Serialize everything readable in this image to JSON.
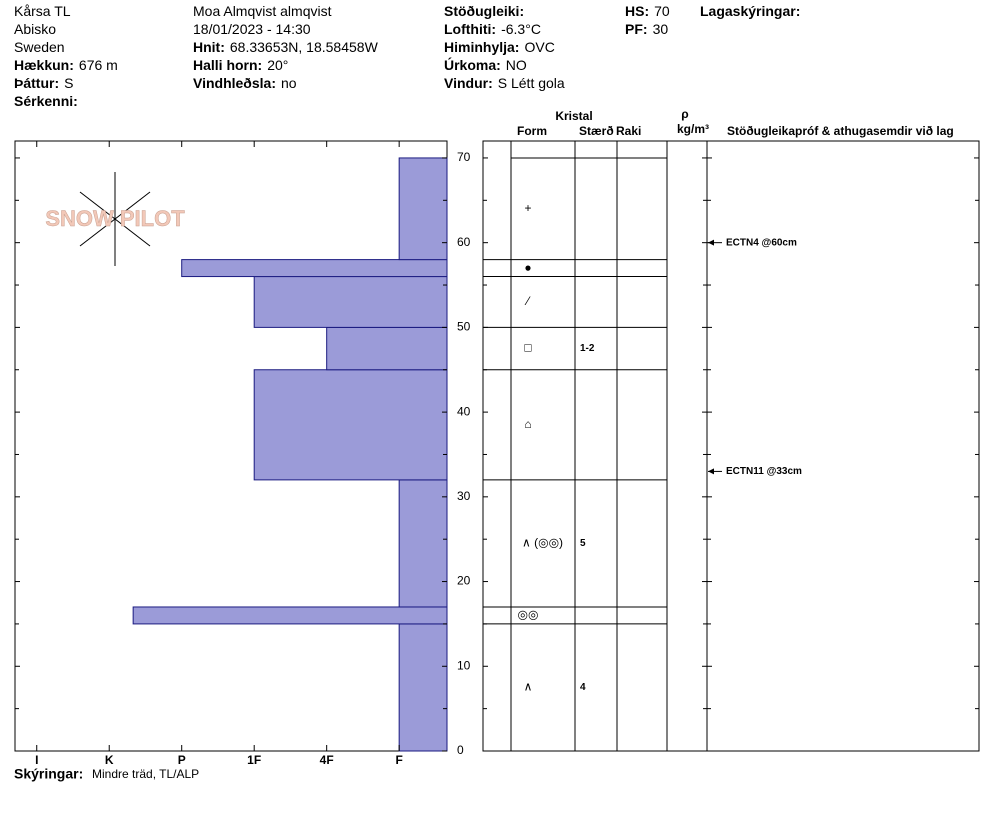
{
  "header": {
    "columns": [
      [
        {
          "value": "Kårsa TL"
        },
        {
          "value": "Abisko"
        },
        {
          "value": "Sweden"
        },
        {
          "label": "Hækkun:",
          "value": "676 m"
        },
        {
          "label": "Þáttur:",
          "value": "S"
        },
        {
          "label": "Sérkenni:"
        }
      ],
      [
        {
          "value": "Moa Almqvist almqvist"
        },
        {
          "value": "18/01/2023 - 14:30"
        },
        {
          "label": "Hnit:",
          "value": "68.33653N, 18.58458W"
        },
        {
          "label": "Halli horn:",
          "value": "20°"
        },
        {
          "label": "Vindhleðsla:",
          "value": "no"
        }
      ],
      [
        {
          "label": "Stöðugleiki:"
        },
        {
          "label": "Lofthiti:",
          "value": "-6.3°C"
        },
        {
          "label": "Himinhylja:",
          "value": "OVC"
        },
        {
          "label": "Úrkoma:",
          "value": "NO"
        },
        {
          "label": "Vindur:",
          "value": "S Létt gola"
        }
      ],
      [
        {
          "label": "HS:",
          "value": "70"
        },
        {
          "label": "PF:",
          "value": "30"
        }
      ],
      [
        {
          "label": "Lagaskýringar:"
        }
      ]
    ],
    "logo": "SNOW PILOT"
  },
  "chart_data": {
    "type": "bar",
    "orientation": "horizontal",
    "bottoms": [
      0,
      15,
      17,
      32,
      45,
      50,
      56,
      58
    ],
    "tops": [
      15,
      17,
      32,
      45,
      50,
      56,
      58,
      70
    ],
    "values": [
      1,
      4.67,
      1,
      3,
      2,
      3,
      4,
      1
    ],
    "color": "#9b9bd8",
    "edge_color": "#1a1a80",
    "xlim": [
      0.34,
      6.3
    ],
    "xticks": [
      {
        "value": 6,
        "label": "I"
      },
      {
        "value": 5,
        "label": "K"
      },
      {
        "value": 4,
        "label": "P"
      },
      {
        "value": 3,
        "label": "1F"
      },
      {
        "value": 2,
        "label": "4F"
      },
      {
        "value": 1,
        "label": "F"
      }
    ],
    "ylim": [
      0,
      72
    ],
    "yticks": [
      0,
      10,
      20,
      30,
      40,
      50,
      60,
      70
    ]
  },
  "profile_table": {
    "headers": {
      "crystal": "Kristal",
      "form": "Form",
      "size": "Stærð",
      "wetness": "Raki",
      "density_symbol": "ρ",
      "density_unit": "kg/m³",
      "tests": "Stöðugleikapróf & athugasemdir við lag"
    },
    "layers": [
      {
        "top": 70,
        "bottom": 58,
        "form": "+"
      },
      {
        "top": 58,
        "bottom": 56,
        "form": "●"
      },
      {
        "top": 56,
        "bottom": 50,
        "form": "⁄"
      },
      {
        "top": 50,
        "bottom": 45,
        "form": "□",
        "size": "1-2"
      },
      {
        "top": 45,
        "bottom": 32,
        "form": "⌂"
      },
      {
        "top": 32,
        "bottom": 17,
        "form": "∧ (◎◎)",
        "size": "5"
      },
      {
        "top": 17,
        "bottom": 15,
        "form": "◎◎"
      },
      {
        "top": 15,
        "bottom": 0,
        "form": "∧",
        "size": "4"
      }
    ],
    "tests": [
      {
        "depth": 60,
        "label": "ECTN4 @60cm"
      },
      {
        "depth": 33,
        "label": "ECTN11 @33cm"
      }
    ]
  },
  "footer": {
    "label": "Skýringar:",
    "value": "Mindre träd, TL/ALP"
  }
}
